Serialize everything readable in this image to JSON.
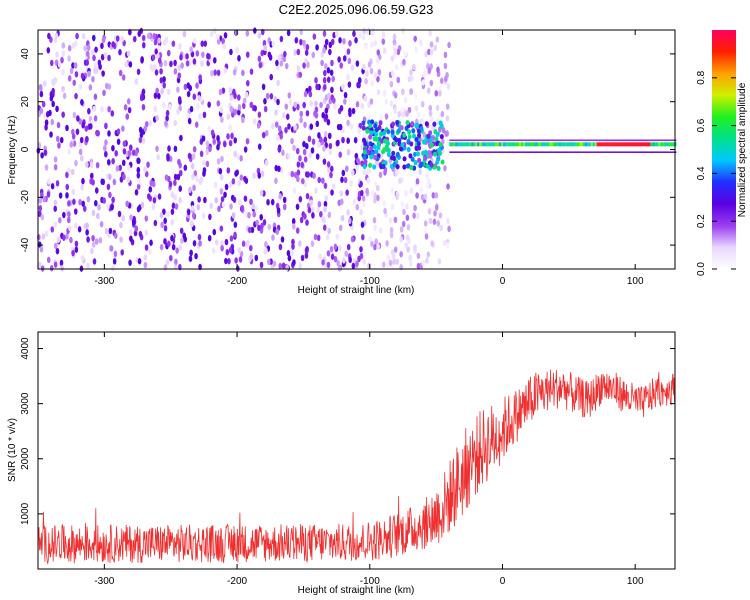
{
  "title": "C2E2.2025.096.06.59.G23",
  "chart_data": [
    {
      "type": "heatmap",
      "xlabel": "Height of straight line (km)",
      "ylabel": "Frequency (Hz)",
      "xlim": [
        -350,
        130
      ],
      "ylim": [
        -50,
        50
      ],
      "x_ticks": [
        -300,
        -200,
        -100,
        0,
        100
      ],
      "y_ticks": [
        -40,
        -20,
        0,
        20,
        40
      ],
      "grid": false,
      "colorbar": {
        "label": "Normalized spectral amplitude",
        "range": [
          0,
          1
        ],
        "ticks": [
          "0.0",
          "0.2",
          "0.4",
          "0.6",
          "0.8"
        ],
        "colormap": [
          "#ffffff",
          "#e8d6ff",
          "#9b3cf0",
          "#5a00e0",
          "#2030ff",
          "#00c8ff",
          "#00e08a",
          "#20f020",
          "#d0f000",
          "#ffa000",
          "#ff2000",
          "#ff0060"
        ]
      },
      "features": {
        "noise_region_km": [
          -350,
          -40
        ],
        "transition_km": [
          -105,
          -45
        ],
        "carrier_start_km": -40,
        "carrier_frequency_hz": 1,
        "peak_amplitude_region_km": [
          70,
          110
        ],
        "peak_amplitude": 0.95
      }
    },
    {
      "type": "line",
      "xlabel": "Height of straight line (km)",
      "ylabel": "SNR (10 * v/v)",
      "xlim": [
        -350,
        130
      ],
      "ylim": [
        0,
        4300
      ],
      "x_ticks": [
        -300,
        -200,
        -100,
        0,
        100
      ],
      "y_ticks": [
        1000,
        2000,
        3000,
        4000
      ],
      "grid": false,
      "series": [
        {
          "color": "#f03030",
          "profile": [
            [
              -350,
              450
            ],
            [
              -250,
              460
            ],
            [
              -150,
              470
            ],
            [
              -110,
              480
            ],
            [
              -90,
              550
            ],
            [
              -70,
              700
            ],
            [
              -55,
              850
            ],
            [
              -45,
              1100
            ],
            [
              -35,
              1500
            ],
            [
              -25,
              1900
            ],
            [
              -15,
              2200
            ],
            [
              -5,
              2400
            ],
            [
              5,
              2650
            ],
            [
              15,
              2900
            ],
            [
              25,
              3150
            ],
            [
              35,
              3250
            ],
            [
              45,
              3300
            ],
            [
              55,
              3150
            ],
            [
              65,
              3050
            ],
            [
              75,
              3350
            ],
            [
              85,
              3250
            ],
            [
              95,
              3100
            ],
            [
              105,
              3000
            ],
            [
              115,
              3200
            ],
            [
              125,
              3250
            ],
            [
              130,
              3300
            ]
          ],
          "noise_amplitude": [
            [
              -350,
              350
            ],
            [
              -110,
              350
            ],
            [
              -60,
              450
            ],
            [
              -30,
              800
            ],
            [
              -10,
              700
            ],
            [
              10,
              500
            ],
            [
              40,
              380
            ],
            [
              130,
              280
            ]
          ]
        }
      ]
    }
  ]
}
